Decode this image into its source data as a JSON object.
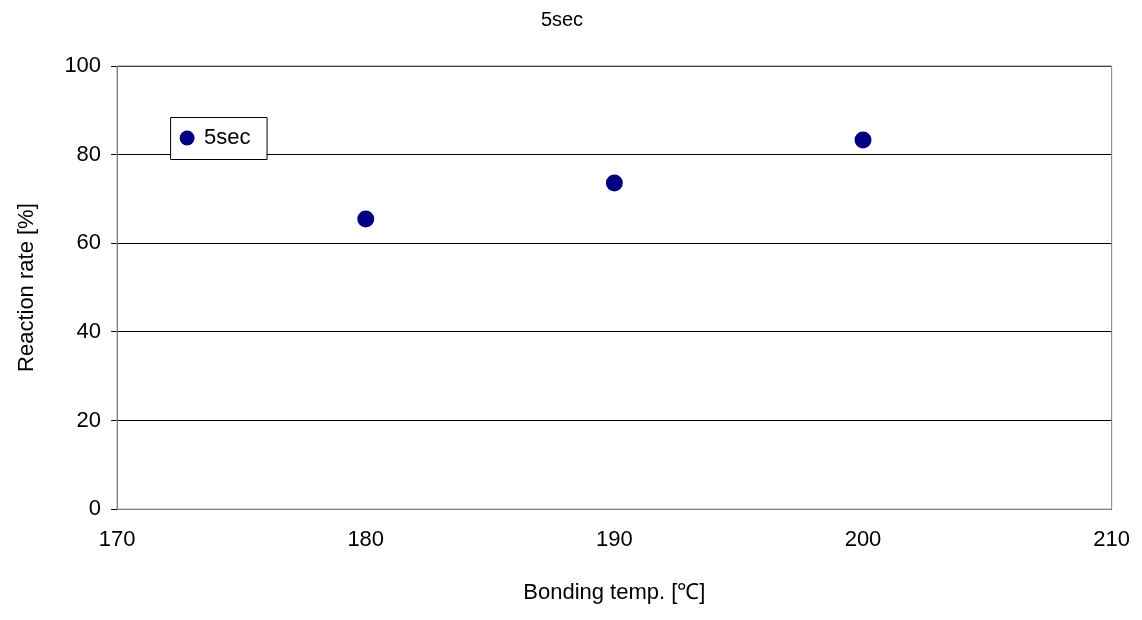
{
  "chart_data": {
    "type": "scatter",
    "title": "5sec",
    "xlabel": "Bonding temp. [℃]",
    "ylabel": "Reaction rate [%]",
    "x": [
      180,
      190,
      200
    ],
    "series": [
      {
        "name": "5sec",
        "color": "#000080",
        "values": [
          65.5,
          73.6,
          83.3
        ]
      }
    ],
    "xlim": [
      170,
      210
    ],
    "xticks": [
      170,
      180,
      190,
      200,
      210
    ],
    "ylim": [
      0,
      100
    ],
    "yticks": [
      0,
      20,
      40,
      60,
      80,
      100
    ],
    "grid": "y",
    "legend": "top left",
    "marker": "circle"
  }
}
